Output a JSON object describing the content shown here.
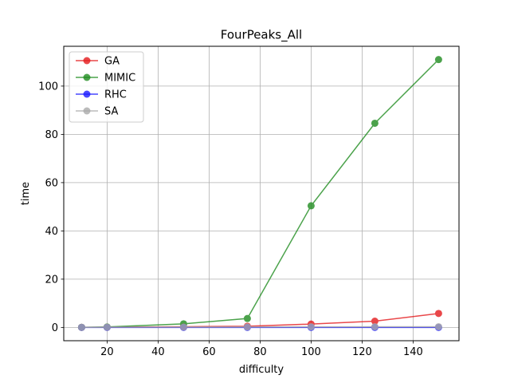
{
  "chart_data": {
    "type": "line",
    "title": "FourPeaks_All",
    "xlabel": "difficulty",
    "ylabel": "time",
    "xlim": [
      3,
      158
    ],
    "ylim": [
      -5.5,
      116.5
    ],
    "xticks": [
      20,
      40,
      60,
      80,
      100,
      120,
      140
    ],
    "yticks": [
      0,
      20,
      40,
      60,
      80,
      100
    ],
    "grid": true,
    "legend_position": "top-left",
    "x": [
      10,
      20,
      50,
      75,
      100,
      125,
      150
    ],
    "series": [
      {
        "name": "GA",
        "color": "#e41a1c",
        "values": [
          0.05,
          0.1,
          0.3,
          0.5,
          1.4,
          2.6,
          5.8
        ]
      },
      {
        "name": "MIMIC",
        "color": "#1f8c1f",
        "values": [
          0.05,
          0.2,
          1.5,
          3.7,
          50.4,
          84.6,
          111.0
        ]
      },
      {
        "name": "RHC",
        "color": "#1a1aff",
        "values": [
          0.0,
          0.0,
          0.0,
          0.0,
          0.0,
          0.0,
          0.0
        ]
      },
      {
        "name": "SA",
        "color": "#aaaaaa",
        "values": [
          0.05,
          0.1,
          0.15,
          0.2,
          0.25,
          0.3,
          0.3
        ]
      }
    ]
  }
}
